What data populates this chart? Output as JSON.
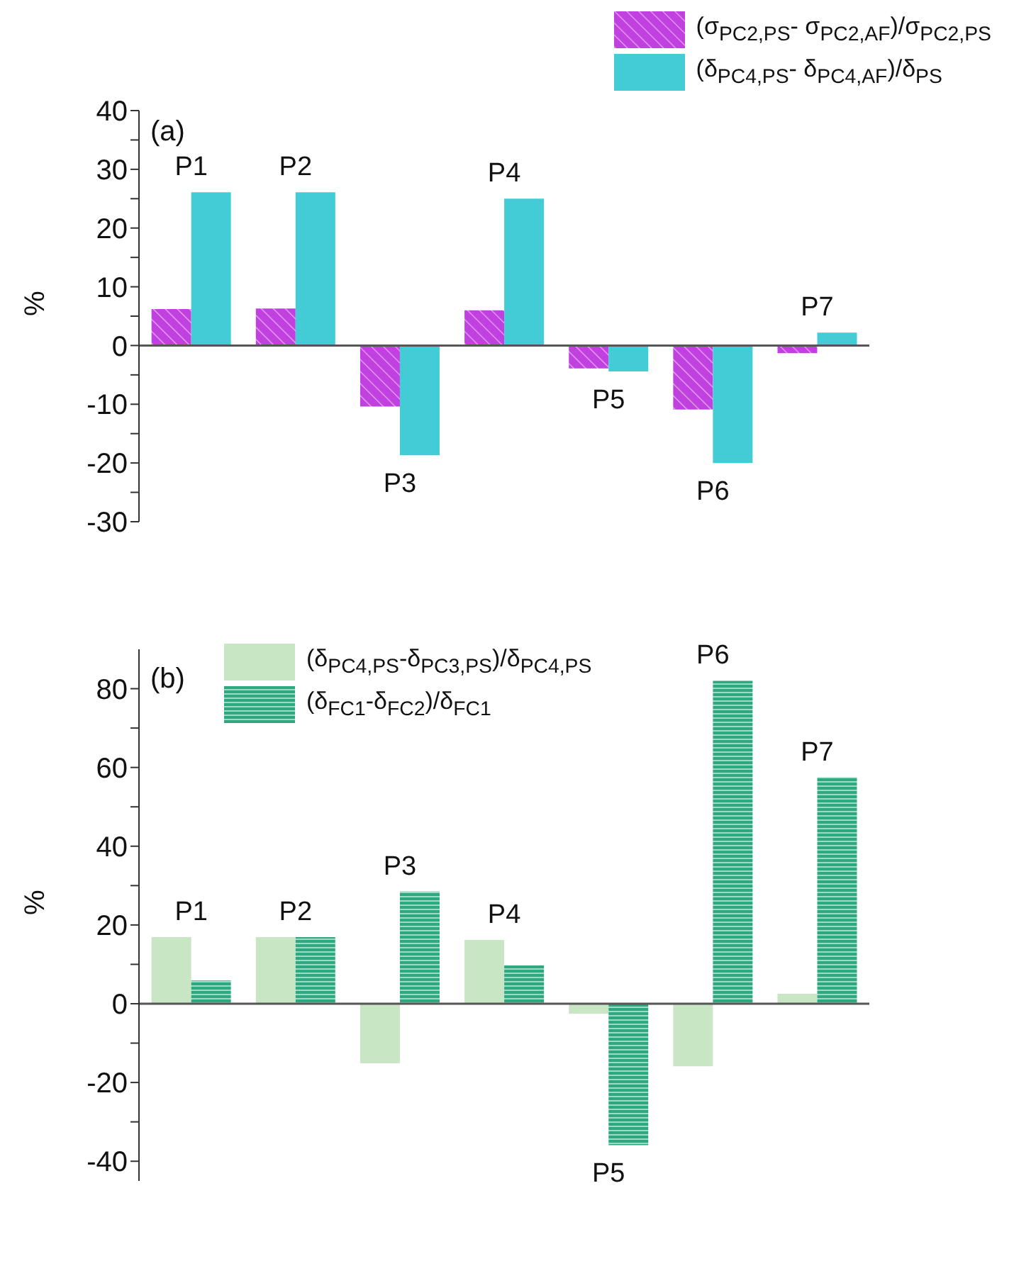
{
  "chart_data": [
    {
      "type": "bar",
      "categories": [
        "P1",
        "P2",
        "P3",
        "P4",
        "P5",
        "P6",
        "P7"
      ],
      "ylabel": "%",
      "annotations": [
        "(a)"
      ],
      "series": [
        {
          "name": "(σ$_{PC2,PS}$- σ$_{PC2,AF}$)/σ$_{PC2,PS}$",
          "color": "#c040e0",
          "values": [
            6.2,
            6.3,
            -10.4,
            6.0,
            -3.9,
            -10.9,
            -1.3
          ]
        },
        {
          "name": "(δ$_{PC4,PS}$- δ$_{PC4,AF}$)/δ$_{PS}$",
          "color": "#44ccd6",
          "values": [
            26.1,
            26.1,
            -18.7,
            25.0,
            -4.4,
            -20.0,
            2.2
          ]
        }
      ],
      "ylim": [
        -30,
        40
      ],
      "yticks": [
        -30,
        {
          "value": -25,
          "label": null
        },
        -20,
        {
          "value": -15,
          "label": null
        },
        -10,
        {
          "value": -5,
          "label": null
        },
        0,
        {
          "value": 5,
          "label": null
        },
        10,
        {
          "value": 15,
          "label": null
        },
        20,
        {
          "value": 25,
          "label": null
        },
        30,
        {
          "value": 35,
          "label": null
        },
        40
      ],
      "ref_lines": [
        {
          "axis": "y",
          "value": 0,
          "color": "#555555"
        }
      ],
      "legend": "top right",
      "grid": false
    },
    {
      "type": "bar",
      "categories": [
        "P1",
        "P2",
        "P3",
        "P4",
        "P5",
        "P6",
        "P7"
      ],
      "ylabel": "%",
      "annotations": [
        "(b)"
      ],
      "series": [
        {
          "name": "(δ$_{PC4,PS}$-δ$_{PC3,PS}$)/δ$_{PC4,PS}$",
          "color": "#c8e6c4",
          "values": [
            16.9,
            16.9,
            -15.1,
            16.2,
            -2.5,
            -15.9,
            2.5
          ]
        },
        {
          "name": "(δ$_{FC1}$-δ$_{FC2}$)/δ$_{FC1}$",
          "color": "#2ea880",
          "values": [
            5.9,
            16.9,
            28.5,
            9.7,
            -35.9,
            82.0,
            57.5
          ]
        }
      ],
      "ylim": [
        -45,
        90
      ],
      "yticks": [
        -40,
        {
          "value": -30,
          "label": null
        },
        -20,
        {
          "value": -10,
          "label": null
        },
        0,
        {
          "value": 10,
          "label": null
        },
        20,
        {
          "value": 30,
          "label": null
        },
        40,
        {
          "value": 50,
          "label": null
        },
        60,
        {
          "value": 70,
          "label": null
        },
        80
      ],
      "ref_lines": [
        {
          "axis": "y",
          "value": 0,
          "color": "#555555"
        }
      ],
      "legend": "top left",
      "grid": false
    }
  ]
}
